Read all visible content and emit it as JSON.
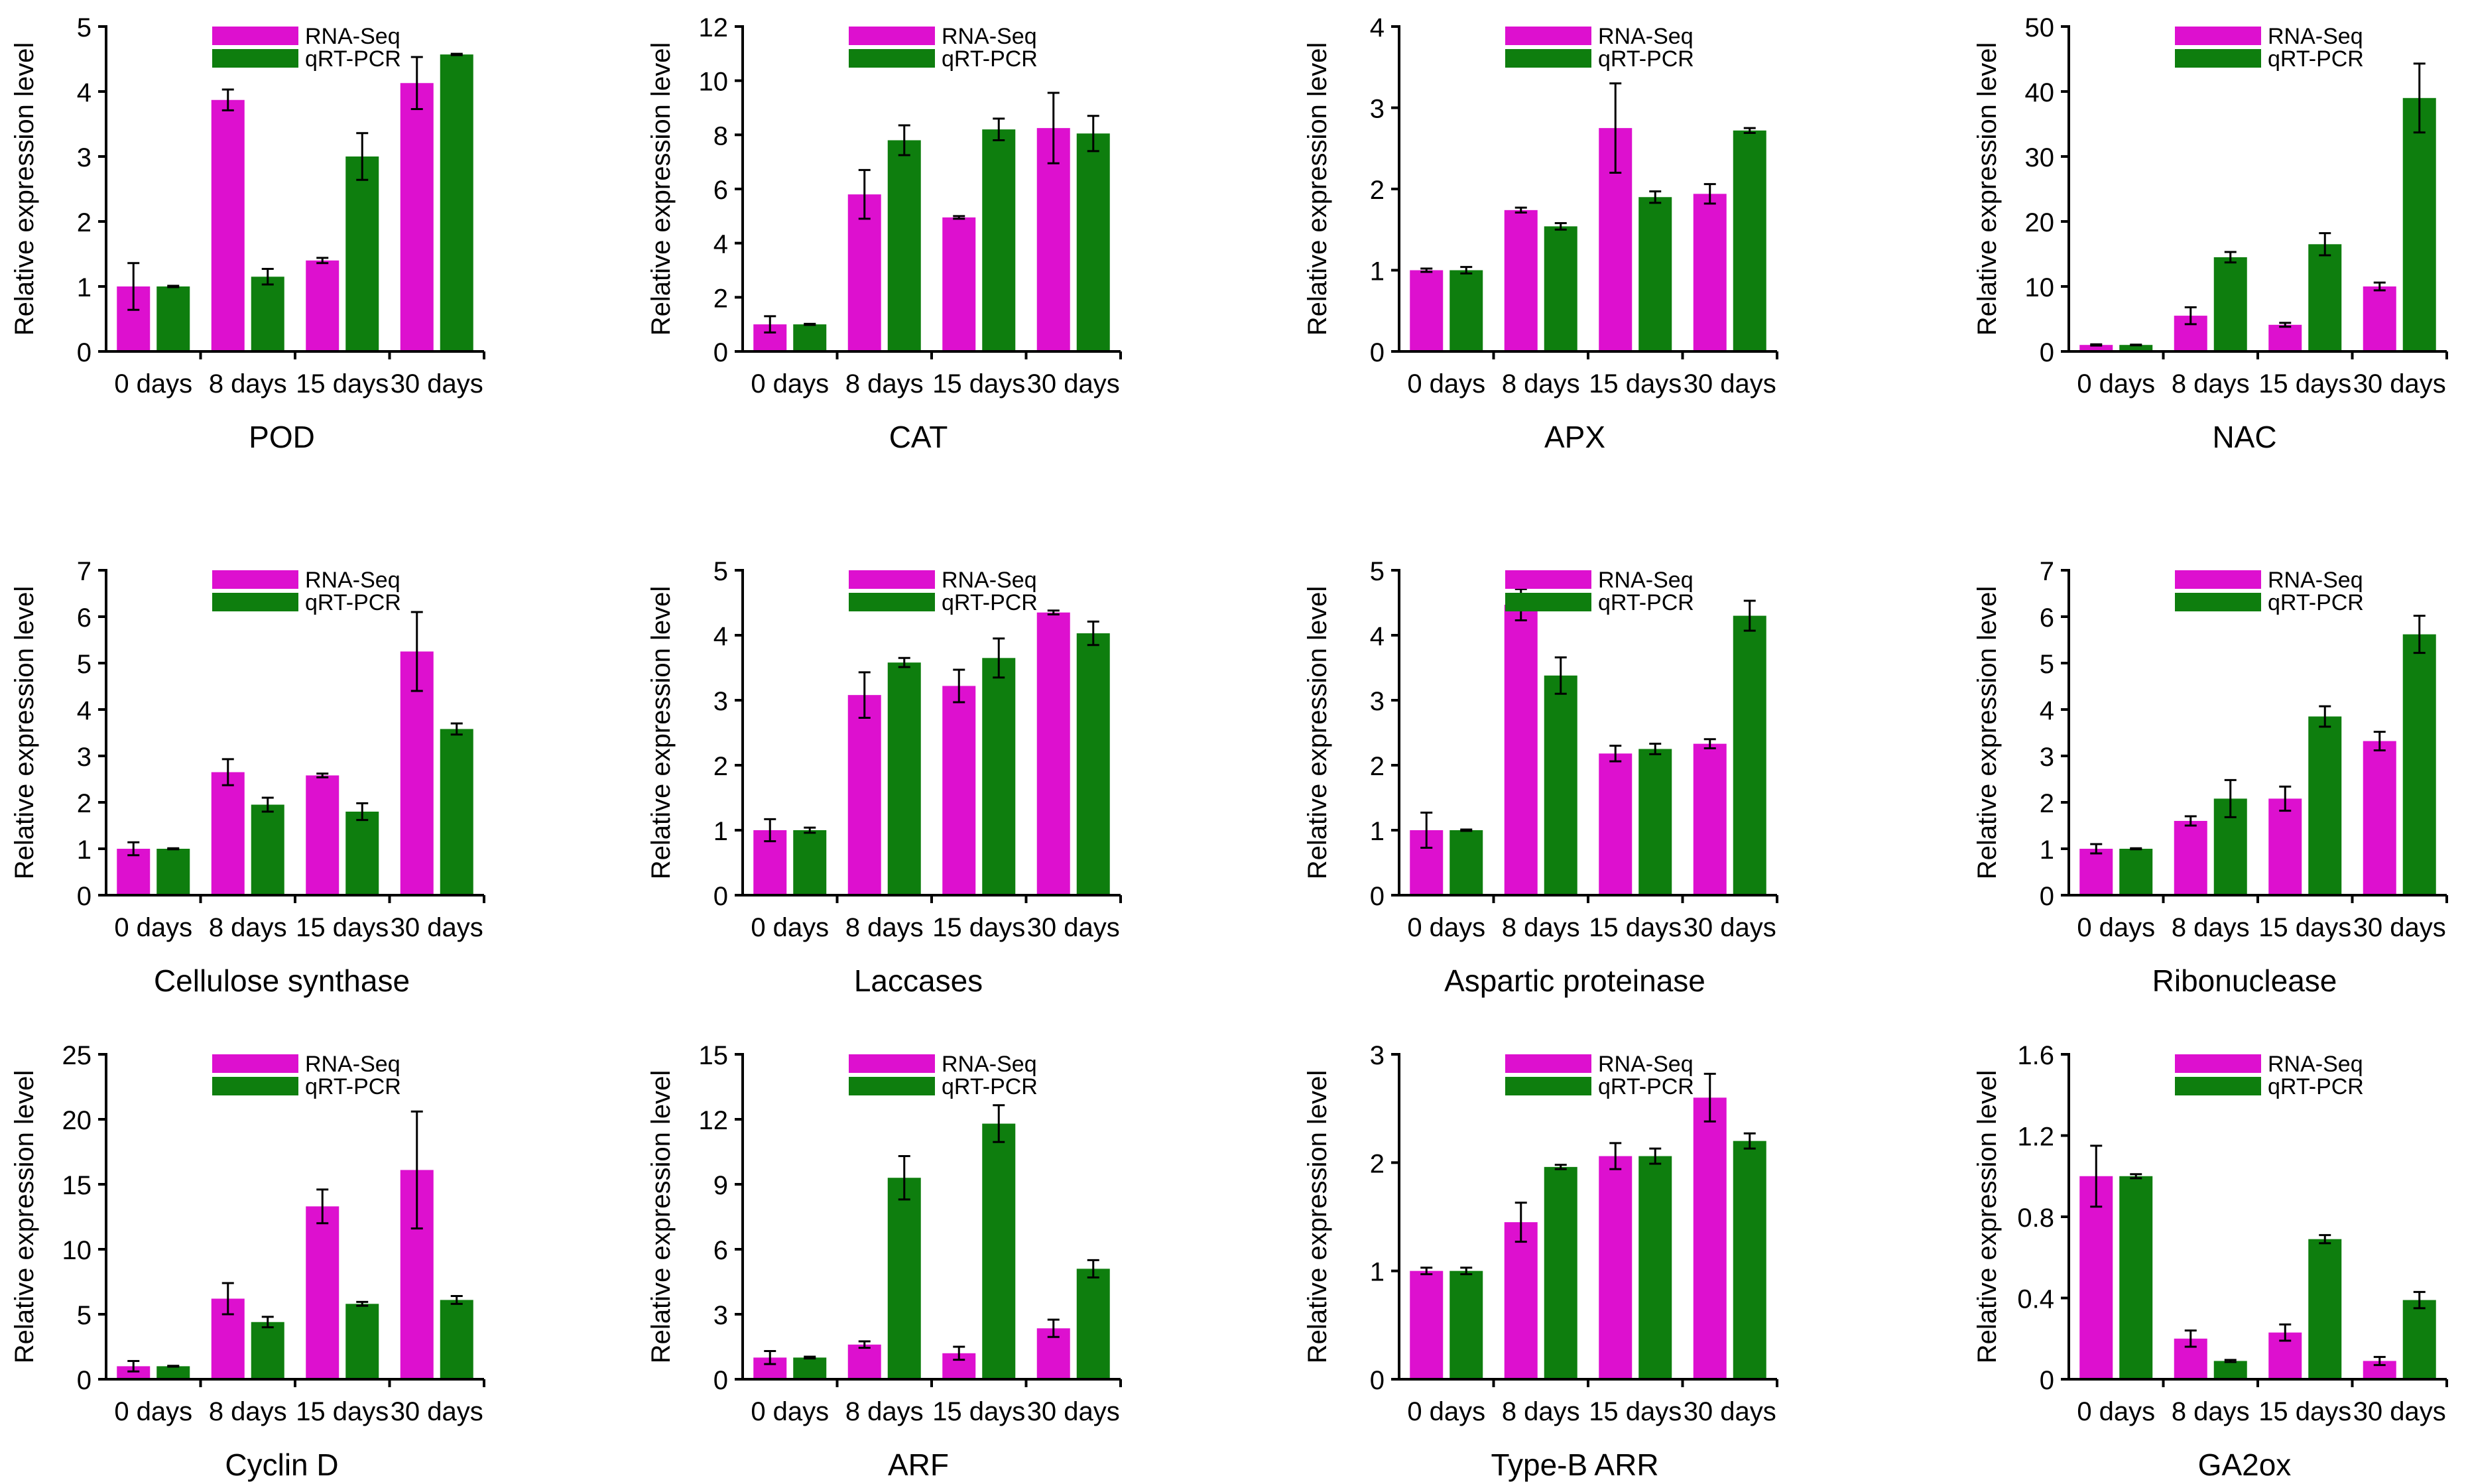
{
  "colors": {
    "rna": "#DD10CF",
    "qrt": "#0E7E0E",
    "axis": "#000000"
  },
  "chart_data": [
    {
      "type": "bar",
      "title": "POD",
      "ylabel": "Relative expression level",
      "categories": [
        "0 days",
        "8 days",
        "15 days",
        "30 days"
      ],
      "ylim": [
        0,
        5
      ],
      "yticks": [
        "0",
        "1",
        "2",
        "3",
        "4",
        "5"
      ],
      "series": [
        {
          "name": "RNA-Seq",
          "values": [
            1.0,
            3.87,
            1.4,
            4.13
          ],
          "errors": [
            0.36,
            0.16,
            0.04,
            0.4
          ]
        },
        {
          "name": "qRT-PCR",
          "values": [
            1.0,
            1.15,
            3.0,
            4.57
          ],
          "errors": [
            0.01,
            0.12,
            0.36,
            0.01
          ]
        }
      ]
    },
    {
      "type": "bar",
      "title": "CAT",
      "ylabel": "Relative expression level",
      "categories": [
        "0 days",
        "8 days",
        "15 days",
        "30 days"
      ],
      "ylim": [
        0,
        12
      ],
      "yticks": [
        "0",
        "2",
        "4",
        "6",
        "8",
        "10",
        "12"
      ],
      "series": [
        {
          "name": "RNA-Seq",
          "values": [
            1.0,
            5.8,
            4.95,
            8.25
          ],
          "errors": [
            0.3,
            0.9,
            0.05,
            1.3
          ]
        },
        {
          "name": "qRT-PCR",
          "values": [
            1.0,
            7.8,
            8.2,
            8.05
          ],
          "errors": [
            0.02,
            0.55,
            0.4,
            0.65
          ]
        }
      ]
    },
    {
      "type": "bar",
      "title": "APX",
      "ylabel": "Relative expression level",
      "categories": [
        "0 days",
        "8 days",
        "15 days",
        "30 days"
      ],
      "ylim": [
        0,
        4
      ],
      "yticks": [
        "0",
        "1",
        "2",
        "3",
        "4"
      ],
      "series": [
        {
          "name": "RNA-Seq",
          "values": [
            1.0,
            1.74,
            2.75,
            1.94
          ],
          "errors": [
            0.02,
            0.03,
            0.55,
            0.12
          ]
        },
        {
          "name": "qRT-PCR",
          "values": [
            1.0,
            1.54,
            1.9,
            2.72
          ],
          "errors": [
            0.04,
            0.04,
            0.07,
            0.03
          ]
        }
      ]
    },
    {
      "type": "bar",
      "title": "NAC",
      "ylabel": "Relative expression level",
      "categories": [
        "0 days",
        "8 days",
        "15 days",
        "30 days"
      ],
      "ylim": [
        0,
        50
      ],
      "yticks": [
        "0",
        "10",
        "20",
        "30",
        "40",
        "50"
      ],
      "series": [
        {
          "name": "RNA-Seq",
          "values": [
            1.0,
            5.5,
            4.1,
            10.0
          ],
          "errors": [
            0.1,
            1.3,
            0.3,
            0.6
          ]
        },
        {
          "name": "qRT-PCR",
          "values": [
            1.0,
            14.5,
            16.5,
            39.0
          ],
          "errors": [
            0.05,
            0.8,
            1.7,
            5.3
          ]
        }
      ]
    },
    {
      "type": "bar",
      "title": "Cellulose synthase",
      "ylabel": "Relative expression level",
      "categories": [
        "0 days",
        "8 days",
        "15 days",
        "30 days"
      ],
      "ylim": [
        0,
        7
      ],
      "yticks": [
        "0",
        "1",
        "2",
        "3",
        "4",
        "5",
        "6",
        "7"
      ],
      "series": [
        {
          "name": "RNA-Seq",
          "values": [
            1.0,
            2.65,
            2.58,
            5.25
          ],
          "errors": [
            0.14,
            0.28,
            0.04,
            0.85
          ]
        },
        {
          "name": "qRT-PCR",
          "values": [
            1.0,
            1.95,
            1.8,
            3.58
          ],
          "errors": [
            0.01,
            0.15,
            0.18,
            0.12
          ]
        }
      ]
    },
    {
      "type": "bar",
      "title": "Laccases",
      "ylabel": "Relative expression level",
      "categories": [
        "0 days",
        "8 days",
        "15 days",
        "30 days"
      ],
      "ylim": [
        0,
        5
      ],
      "yticks": [
        "0",
        "1",
        "2",
        "3",
        "4",
        "5"
      ],
      "series": [
        {
          "name": "RNA-Seq",
          "values": [
            1.0,
            3.08,
            3.22,
            4.35
          ],
          "errors": [
            0.17,
            0.35,
            0.25,
            0.03
          ]
        },
        {
          "name": "qRT-PCR",
          "values": [
            1.0,
            3.58,
            3.65,
            4.03
          ],
          "errors": [
            0.04,
            0.07,
            0.3,
            0.18
          ]
        }
      ]
    },
    {
      "type": "bar",
      "title": "Aspartic proteinase",
      "ylabel": "Relative expression level",
      "categories": [
        "0 days",
        "8 days",
        "15 days",
        "30 days"
      ],
      "ylim": [
        0,
        5
      ],
      "yticks": [
        "0",
        "1",
        "2",
        "3",
        "4",
        "5"
      ],
      "series": [
        {
          "name": "RNA-Seq",
          "values": [
            1.0,
            4.47,
            2.18,
            2.33
          ],
          "errors": [
            0.27,
            0.24,
            0.12,
            0.07
          ]
        },
        {
          "name": "qRT-PCR",
          "values": [
            1.0,
            3.38,
            2.25,
            4.3
          ],
          "errors": [
            0.01,
            0.28,
            0.08,
            0.23
          ]
        }
      ]
    },
    {
      "type": "bar",
      "title": "Ribonuclease",
      "ylabel": "Relative expression level",
      "categories": [
        "0 days",
        "8 days",
        "15 days",
        "30 days"
      ],
      "ylim": [
        0,
        7
      ],
      "yticks": [
        "0",
        "1",
        "2",
        "3",
        "4",
        "5",
        "6",
        "7"
      ],
      "series": [
        {
          "name": "RNA-Seq",
          "values": [
            1.0,
            1.6,
            2.08,
            3.32
          ],
          "errors": [
            0.1,
            0.1,
            0.26,
            0.2
          ]
        },
        {
          "name": "qRT-PCR",
          "values": [
            1.0,
            2.08,
            3.85,
            5.62
          ],
          "errors": [
            0.01,
            0.4,
            0.22,
            0.4
          ]
        }
      ]
    },
    {
      "type": "bar",
      "title": "Cyclin D",
      "ylabel": "Relative expression level",
      "categories": [
        "0 days",
        "8 days",
        "15 days",
        "30 days"
      ],
      "ylim": [
        0,
        25
      ],
      "yticks": [
        "0",
        "5",
        "10",
        "15",
        "20",
        "25"
      ],
      "series": [
        {
          "name": "RNA-Seq",
          "values": [
            1.0,
            6.2,
            13.3,
            16.1
          ],
          "errors": [
            0.4,
            1.2,
            1.3,
            4.5
          ]
        },
        {
          "name": "qRT-PCR",
          "values": [
            1.0,
            4.4,
            5.8,
            6.1
          ],
          "errors": [
            0.03,
            0.4,
            0.15,
            0.3
          ]
        }
      ]
    },
    {
      "type": "bar",
      "title": "ARF",
      "ylabel": "Relative expression level",
      "categories": [
        "0 days",
        "8 days",
        "15 days",
        "30 days"
      ],
      "ylim": [
        0,
        15
      ],
      "yticks": [
        "0",
        "3",
        "6",
        "9",
        "12",
        "15"
      ],
      "series": [
        {
          "name": "RNA-Seq",
          "values": [
            1.0,
            1.6,
            1.2,
            2.35
          ],
          "errors": [
            0.3,
            0.15,
            0.3,
            0.4
          ]
        },
        {
          "name": "qRT-PCR",
          "values": [
            1.0,
            9.3,
            11.8,
            5.1
          ],
          "errors": [
            0.04,
            1.0,
            0.85,
            0.4
          ]
        }
      ]
    },
    {
      "type": "bar",
      "title": "Type-B ARR",
      "ylabel": "Relative expression level",
      "categories": [
        "0 days",
        "8 days",
        "15 days",
        "30 days"
      ],
      "ylim": [
        0,
        3
      ],
      "yticks": [
        "0",
        "1",
        "2",
        "3"
      ],
      "series": [
        {
          "name": "RNA-Seq",
          "values": [
            1.0,
            1.45,
            2.06,
            2.6
          ],
          "errors": [
            0.03,
            0.18,
            0.12,
            0.22
          ]
        },
        {
          "name": "qRT-PCR",
          "values": [
            1.0,
            1.96,
            2.06,
            2.2
          ],
          "errors": [
            0.03,
            0.02,
            0.07,
            0.07
          ]
        }
      ]
    },
    {
      "type": "bar",
      "title": "GA2ox",
      "ylabel": "Relative expression level",
      "categories": [
        "0 days",
        "8 days",
        "15 days",
        "30 days"
      ],
      "ylim": [
        0,
        1.6
      ],
      "yticks": [
        "0",
        "0.4",
        "0.8",
        "1.2",
        "1.6"
      ],
      "series": [
        {
          "name": "RNA-Seq",
          "values": [
            1.0,
            0.2,
            0.23,
            0.09
          ],
          "errors": [
            0.15,
            0.04,
            0.04,
            0.02
          ]
        },
        {
          "name": "qRT-PCR",
          "values": [
            1.0,
            0.09,
            0.69,
            0.39
          ],
          "errors": [
            0.01,
            0.005,
            0.02,
            0.04
          ]
        }
      ]
    }
  ]
}
